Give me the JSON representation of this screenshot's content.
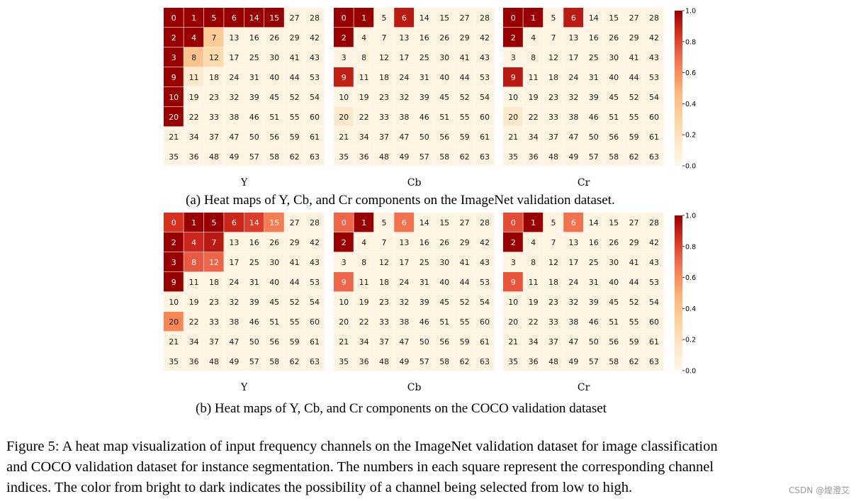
{
  "chart_data": {
    "type": "heatmap",
    "channel_indices": [
      [
        0,
        1,
        5,
        6,
        14,
        15,
        27,
        28
      ],
      [
        2,
        4,
        7,
        13,
        16,
        26,
        29,
        42
      ],
      [
        3,
        8,
        12,
        17,
        25,
        30,
        41,
        43
      ],
      [
        9,
        11,
        18,
        24,
        31,
        40,
        44,
        53
      ],
      [
        10,
        19,
        23,
        32,
        39,
        45,
        52,
        54
      ],
      [
        20,
        22,
        33,
        38,
        46,
        51,
        55,
        60
      ],
      [
        21,
        34,
        37,
        47,
        50,
        56,
        59,
        61
      ],
      [
        35,
        36,
        48,
        49,
        57,
        58,
        62,
        63
      ]
    ],
    "colorbar": {
      "range": [
        0.0,
        1.0
      ],
      "ticks": [
        "0.0",
        "0.2",
        "0.4",
        "0.6",
        "0.8",
        "1.0"
      ],
      "colormap": "OrRd"
    },
    "panels": [
      {
        "caption": "(a) Heat maps of Y, Cb, and Cr components on the ImageNet validation dataset.",
        "maps": [
          {
            "label": "Y",
            "values": [
              [
                1.0,
                1.0,
                1.0,
                1.0,
                1.0,
                1.0,
                0.04,
                0.04
              ],
              [
                1.0,
                1.0,
                0.35,
                0.04,
                0.04,
                0.04,
                0.04,
                0.04
              ],
              [
                1.0,
                0.4,
                0.25,
                0.04,
                0.04,
                0.04,
                0.04,
                0.04
              ],
              [
                1.0,
                0.12,
                0.04,
                0.04,
                0.04,
                0.04,
                0.04,
                0.04
              ],
              [
                1.0,
                0.04,
                0.04,
                0.04,
                0.04,
                0.04,
                0.04,
                0.04
              ],
              [
                1.0,
                0.04,
                0.04,
                0.04,
                0.04,
                0.04,
                0.04,
                0.04
              ],
              [
                0.04,
                0.04,
                0.04,
                0.04,
                0.04,
                0.04,
                0.04,
                0.04
              ],
              [
                0.04,
                0.04,
                0.04,
                0.04,
                0.04,
                0.04,
                0.04,
                0.04
              ]
            ]
          },
          {
            "label": "Cb",
            "values": [
              [
                1.0,
                1.0,
                0.04,
                0.92,
                0.04,
                0.04,
                0.04,
                0.04
              ],
              [
                1.0,
                0.04,
                0.04,
                0.04,
                0.04,
                0.04,
                0.04,
                0.04
              ],
              [
                0.04,
                0.04,
                0.04,
                0.04,
                0.04,
                0.04,
                0.04,
                0.04
              ],
              [
                0.9,
                0.04,
                0.04,
                0.04,
                0.04,
                0.04,
                0.04,
                0.04
              ],
              [
                0.04,
                0.04,
                0.04,
                0.04,
                0.04,
                0.04,
                0.04,
                0.04
              ],
              [
                0.14,
                0.04,
                0.04,
                0.04,
                0.04,
                0.04,
                0.04,
                0.04
              ],
              [
                0.04,
                0.04,
                0.04,
                0.04,
                0.04,
                0.04,
                0.04,
                0.04
              ],
              [
                0.04,
                0.04,
                0.04,
                0.04,
                0.04,
                0.04,
                0.04,
                0.04
              ]
            ]
          },
          {
            "label": "Cr",
            "values": [
              [
                1.0,
                1.0,
                0.04,
                0.92,
                0.04,
                0.04,
                0.04,
                0.04
              ],
              [
                1.0,
                0.04,
                0.04,
                0.04,
                0.04,
                0.04,
                0.04,
                0.04
              ],
              [
                0.04,
                0.04,
                0.04,
                0.04,
                0.04,
                0.04,
                0.04,
                0.04
              ],
              [
                0.92,
                0.04,
                0.04,
                0.04,
                0.04,
                0.04,
                0.04,
                0.04
              ],
              [
                0.04,
                0.04,
                0.04,
                0.04,
                0.04,
                0.04,
                0.04,
                0.04
              ],
              [
                0.14,
                0.04,
                0.04,
                0.04,
                0.04,
                0.04,
                0.04,
                0.04
              ],
              [
                0.04,
                0.04,
                0.04,
                0.04,
                0.04,
                0.04,
                0.04,
                0.04
              ],
              [
                0.04,
                0.04,
                0.04,
                0.04,
                0.04,
                0.04,
                0.04,
                0.04
              ]
            ]
          }
        ]
      },
      {
        "caption": "(b) Heat maps of Y, Cb, and Cr components on the COCO validation dataset",
        "maps": [
          {
            "label": "Y",
            "values": [
              [
                0.85,
                1.0,
                1.0,
                0.88,
                0.82,
                0.65,
                0.04,
                0.04
              ],
              [
                1.0,
                0.88,
                0.92,
                0.04,
                0.04,
                0.04,
                0.04,
                0.04
              ],
              [
                1.0,
                0.75,
                0.72,
                0.04,
                0.04,
                0.04,
                0.04,
                0.04
              ],
              [
                1.0,
                0.04,
                0.04,
                0.04,
                0.04,
                0.04,
                0.04,
                0.04
              ],
              [
                0.04,
                0.04,
                0.04,
                0.04,
                0.04,
                0.04,
                0.04,
                0.04
              ],
              [
                0.62,
                0.04,
                0.04,
                0.04,
                0.04,
                0.04,
                0.04,
                0.04
              ],
              [
                0.04,
                0.04,
                0.04,
                0.04,
                0.04,
                0.04,
                0.04,
                0.04
              ],
              [
                0.04,
                0.04,
                0.04,
                0.04,
                0.04,
                0.04,
                0.04,
                0.04
              ]
            ]
          },
          {
            "label": "Cb",
            "values": [
              [
                0.72,
                1.0,
                0.04,
                0.68,
                0.04,
                0.04,
                0.04,
                0.04
              ],
              [
                1.0,
                0.04,
                0.04,
                0.04,
                0.04,
                0.04,
                0.04,
                0.04
              ],
              [
                0.04,
                0.04,
                0.04,
                0.04,
                0.04,
                0.04,
                0.04,
                0.04
              ],
              [
                0.72,
                0.04,
                0.04,
                0.04,
                0.04,
                0.04,
                0.04,
                0.04
              ],
              [
                0.04,
                0.04,
                0.04,
                0.04,
                0.04,
                0.04,
                0.04,
                0.04
              ],
              [
                0.04,
                0.04,
                0.04,
                0.04,
                0.04,
                0.04,
                0.04,
                0.04
              ],
              [
                0.04,
                0.04,
                0.04,
                0.04,
                0.04,
                0.04,
                0.04,
                0.04
              ],
              [
                0.04,
                0.04,
                0.04,
                0.04,
                0.04,
                0.04,
                0.04,
                0.04
              ]
            ]
          },
          {
            "label": "Cr",
            "values": [
              [
                0.78,
                1.0,
                0.04,
                0.68,
                0.04,
                0.04,
                0.04,
                0.04
              ],
              [
                1.0,
                0.04,
                0.04,
                0.04,
                0.04,
                0.04,
                0.04,
                0.04
              ],
              [
                0.04,
                0.04,
                0.04,
                0.04,
                0.04,
                0.04,
                0.04,
                0.04
              ],
              [
                0.76,
                0.04,
                0.04,
                0.04,
                0.04,
                0.04,
                0.04,
                0.04
              ],
              [
                0.04,
                0.04,
                0.04,
                0.04,
                0.04,
                0.04,
                0.04,
                0.04
              ],
              [
                0.04,
                0.04,
                0.04,
                0.04,
                0.04,
                0.04,
                0.04,
                0.04
              ],
              [
                0.04,
                0.04,
                0.04,
                0.04,
                0.04,
                0.04,
                0.04,
                0.04
              ],
              [
                0.04,
                0.04,
                0.04,
                0.04,
                0.04,
                0.04,
                0.04,
                0.04
              ]
            ]
          }
        ]
      }
    ]
  },
  "figure_caption_lines": [
    "Figure 5: A heat map visualization of input frequency channels on the ImageNet validation dataset for image classification",
    "and COCO validation dataset for instance segmentation. The numbers in each square represent the corresponding channel",
    "indices. The color from bright to dark indicates the possibility of a channel being selected from low to high."
  ],
  "watermark": "CSDN @煌澄艾"
}
